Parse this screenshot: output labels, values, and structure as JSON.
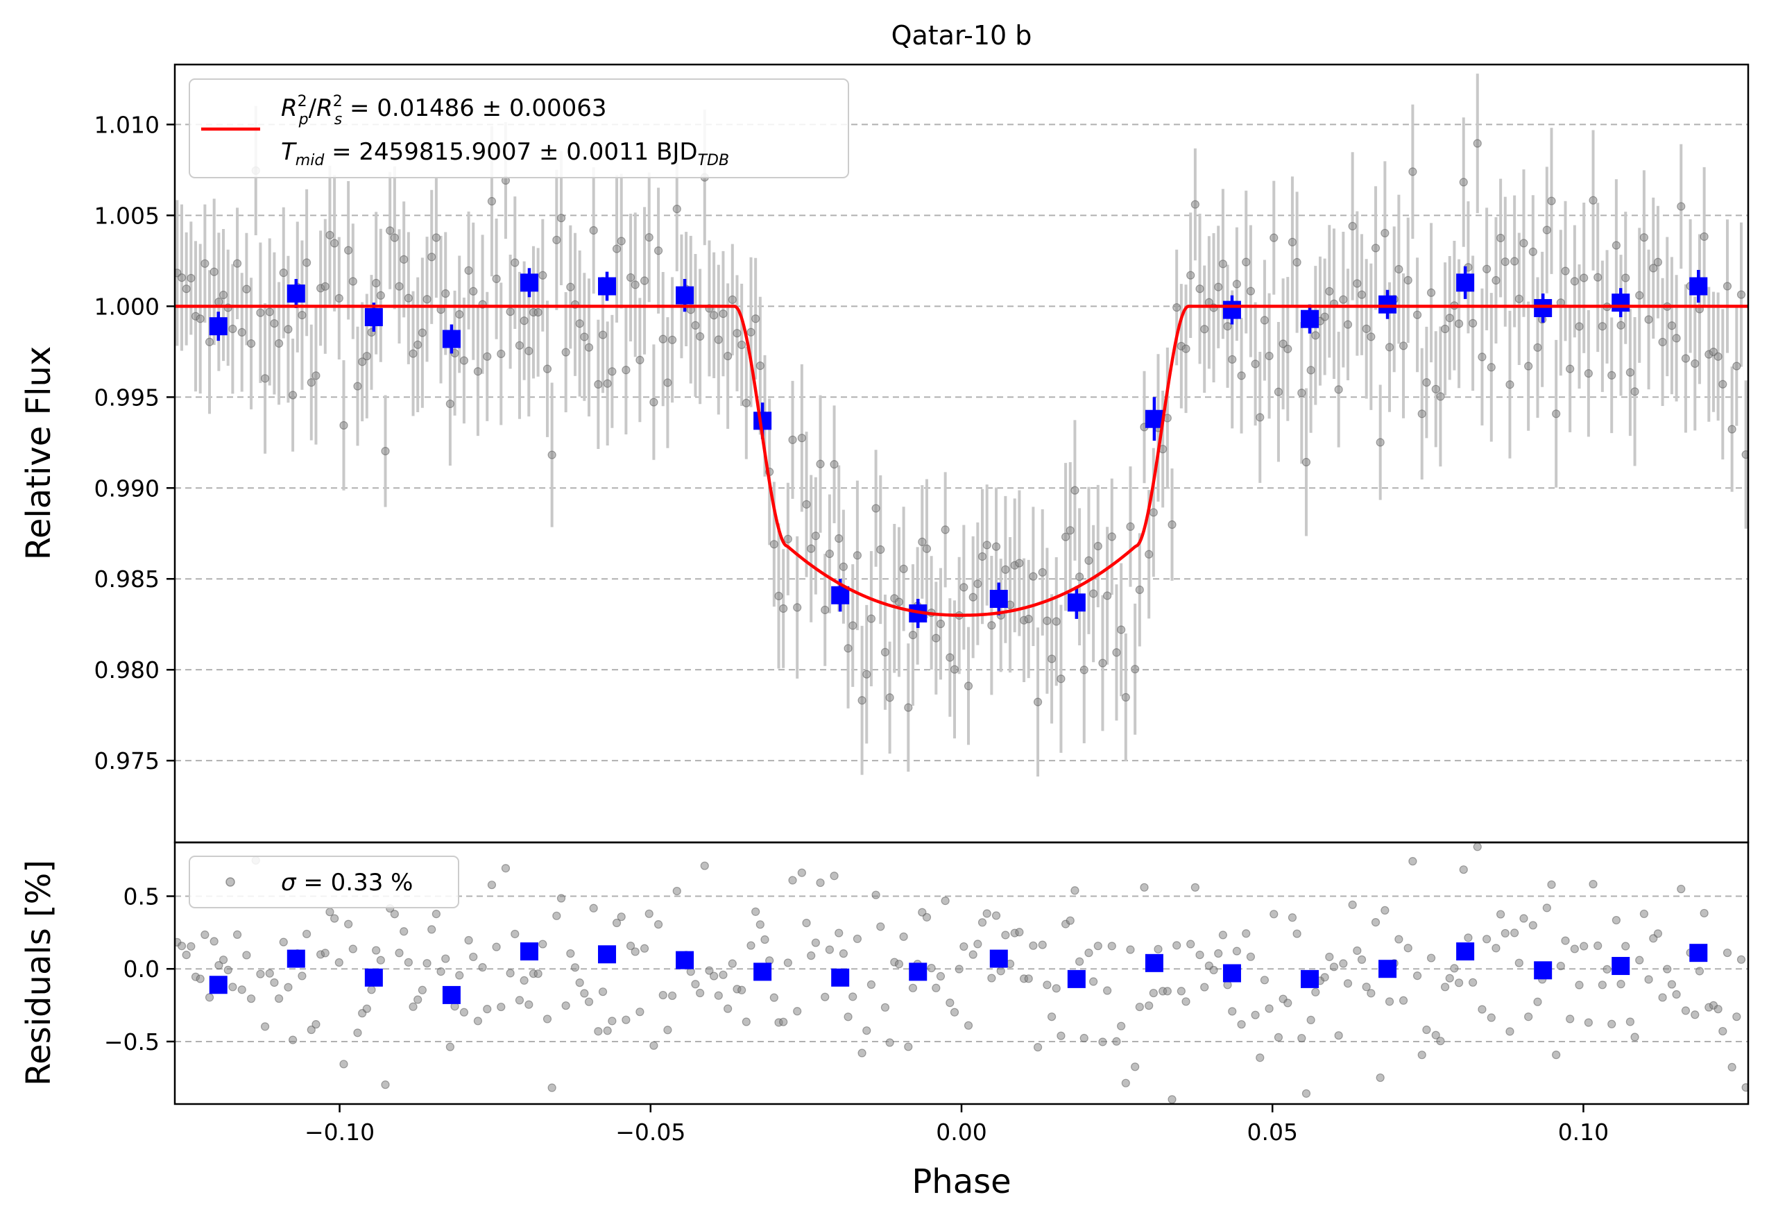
{
  "chart_data": [
    {
      "type": "scatter",
      "panel": "top",
      "title": "Qatar-10 b",
      "xlabel": "",
      "ylabel": "Relative Flux",
      "xlim": [
        -0.1265,
        0.1265
      ],
      "ylim": [
        0.9705,
        1.0133
      ],
      "yticks": [
        0.975,
        0.98,
        0.985,
        0.99,
        0.995,
        1.0,
        1.005,
        1.01
      ],
      "ytick_labels": [
        "0.975",
        "0.980",
        "0.985",
        "0.990",
        "0.995",
        "1.000",
        "1.005",
        "1.010"
      ],
      "grid": "horizontal dashed",
      "legend_position": "upper-left",
      "legend": {
        "line1": {
          "R": "R",
          "p_sup": "2",
          "p_sub": "p",
          "sep": "/",
          "R2": "R",
          "s_sup": "2",
          "s_sub": "s",
          "rest": " = 0.01486 ± 0.00063"
        },
        "line2": {
          "T": "T",
          "t_sub": "mid",
          "rest": " = 2459815.9007 ± 0.0011 BJD",
          "bjd_sub": "TDB"
        }
      },
      "model": {
        "name": "transit model",
        "color": "#ff0000",
        "depth_rp2_rs2": 0.01486,
        "t_mid": 2459815.9007,
        "contact_t1": -0.0365,
        "contact_t2": -0.028,
        "contact_t3": 0.028,
        "contact_t4": 0.0365,
        "baseline": 1.0,
        "min_flux": 0.983,
        "ingress_flux": 0.9868
      },
      "binned_points": {
        "color": "#0000ff",
        "x": [
          -0.1195,
          -0.107,
          -0.0945,
          -0.082,
          -0.0695,
          -0.057,
          -0.0445,
          -0.032,
          -0.0195,
          -0.007,
          0.006,
          0.0185,
          0.031,
          0.0435,
          0.056,
          0.0685,
          0.081,
          0.0935,
          0.106,
          0.1185
        ],
        "y": [
          0.9989,
          1.0007,
          0.9994,
          0.9982,
          1.0013,
          1.0011,
          1.0006,
          0.9937,
          0.9841,
          0.9831,
          0.9839,
          0.9837,
          0.9938,
          0.9998,
          0.9993,
          1.0001,
          1.0013,
          0.9999,
          1.0002,
          1.0011
        ],
        "err": [
          0.0008,
          0.0008,
          0.0008,
          0.0008,
          0.0008,
          0.0008,
          0.0009,
          0.001,
          0.0009,
          0.0008,
          0.0009,
          0.0009,
          0.0012,
          0.0008,
          0.0008,
          0.0008,
          0.0009,
          0.0008,
          0.0008,
          0.0009
        ]
      },
      "raw_points": {
        "color": "#808080",
        "count": 340,
        "x_range": [
          -0.1265,
          0.1265
        ],
        "scatter_sigma": 0.0033,
        "typical_err": 0.0036
      }
    },
    {
      "type": "scatter",
      "panel": "bottom",
      "xlabel": "Phase",
      "ylabel": "Residuals [%]",
      "xlim": [
        -0.1265,
        0.1265
      ],
      "ylim": [
        -0.93,
        0.87
      ],
      "xticks": [
        -0.1,
        -0.05,
        0.0,
        0.05,
        0.1
      ],
      "xtick_labels": [
        "−0.10",
        "−0.05",
        "0.00",
        "0.05",
        "0.10"
      ],
      "yticks": [
        -0.5,
        0.0,
        0.5
      ],
      "ytick_labels": [
        "−0.5",
        "0.0",
        "0.5"
      ],
      "grid": "horizontal dashed",
      "legend_position": "upper-left",
      "legend": {
        "sigma": "σ",
        "rest": " = 0.33 %"
      },
      "binned_points": {
        "color": "#0000ff",
        "x": [
          -0.1195,
          -0.107,
          -0.0945,
          -0.082,
          -0.0695,
          -0.057,
          -0.0445,
          -0.032,
          -0.0195,
          -0.007,
          0.006,
          0.0185,
          0.031,
          0.0435,
          0.056,
          0.0685,
          0.081,
          0.0935,
          0.106,
          0.1185
        ],
        "y": [
          -0.11,
          0.07,
          -0.06,
          -0.18,
          0.12,
          0.1,
          0.06,
          -0.02,
          -0.06,
          -0.02,
          0.07,
          -0.07,
          0.04,
          -0.03,
          -0.07,
          0.0,
          0.12,
          -0.01,
          0.02,
          0.11
        ]
      },
      "raw_points": {
        "color": "#808080",
        "count": 340,
        "scatter_sigma": 0.33
      }
    }
  ]
}
